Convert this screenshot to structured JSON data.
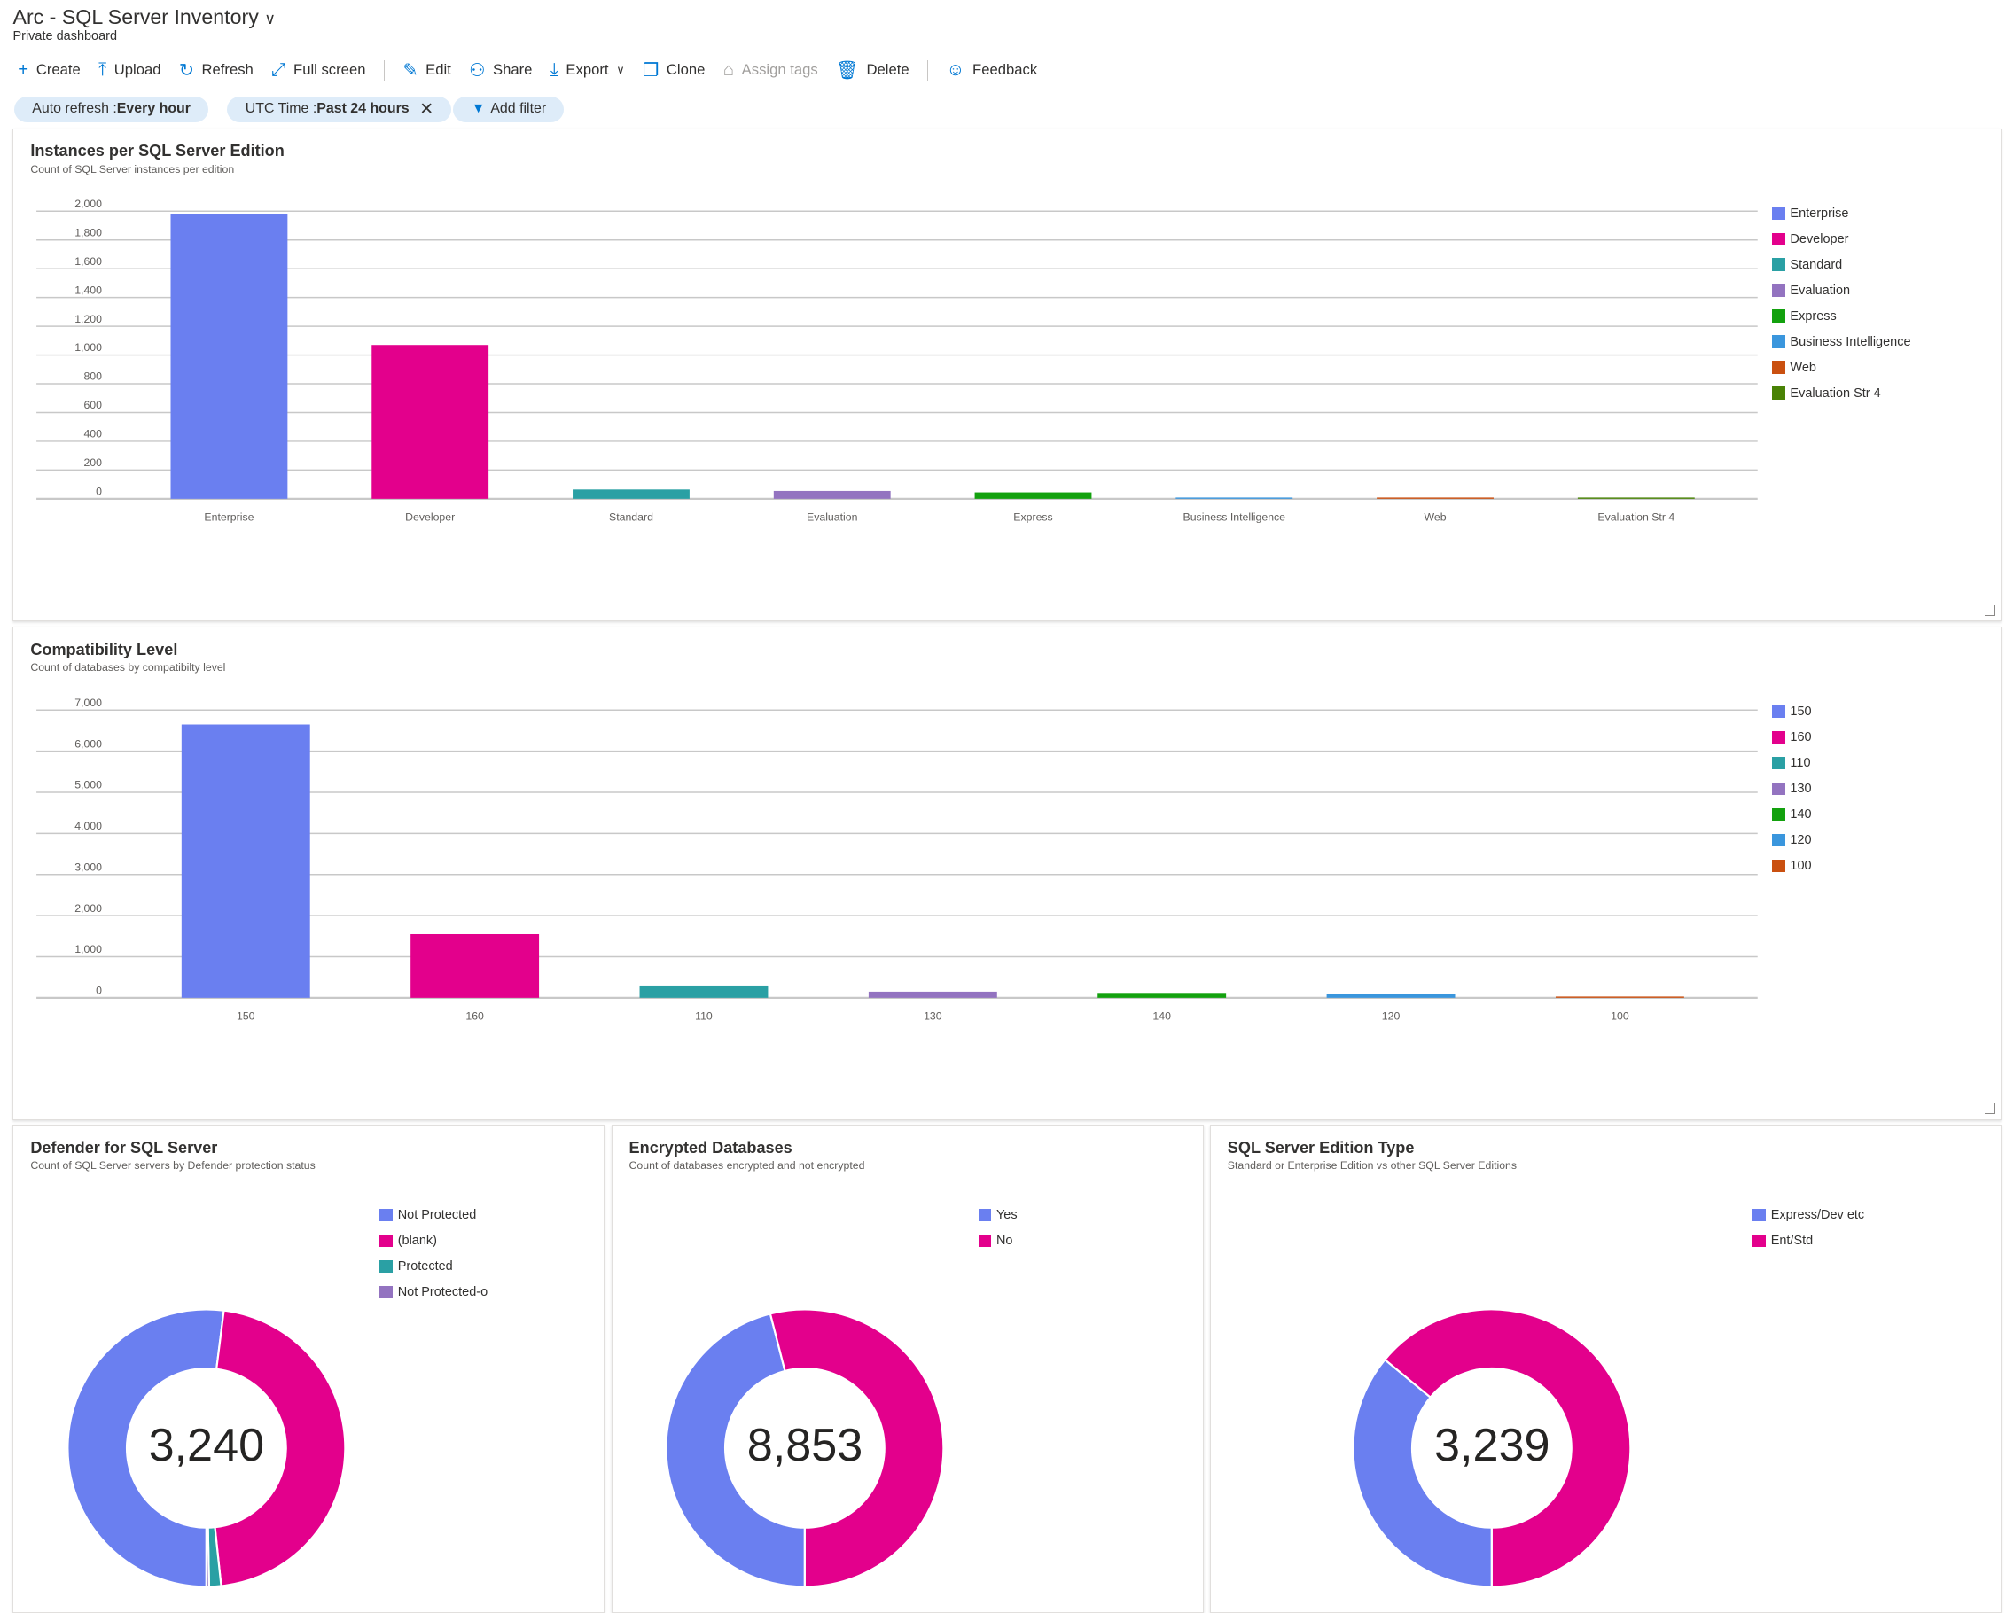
{
  "header": {
    "title": "Arc - SQL Server Inventory",
    "subtitle": "Private dashboard"
  },
  "toolbar": [
    {
      "label": "Create",
      "icon": "plus-icon",
      "glyph": "+"
    },
    {
      "label": "Upload",
      "icon": "upload-icon",
      "glyph": "⤒"
    },
    {
      "label": "Refresh",
      "icon": "refresh-icon",
      "glyph": "↻"
    },
    {
      "label": "Full screen",
      "icon": "fullscreen-icon",
      "glyph": "⤢"
    },
    {
      "label": "Edit",
      "icon": "pencil-icon",
      "glyph": "✎"
    },
    {
      "label": "Share",
      "icon": "share-icon",
      "glyph": "⚇"
    },
    {
      "label": "Export",
      "icon": "download-icon",
      "glyph": "⤓"
    },
    {
      "label": "Clone",
      "icon": "clone-icon",
      "glyph": "❐"
    },
    {
      "label": "Assign tags",
      "icon": "tag-icon",
      "glyph": "⌂"
    },
    {
      "label": "Delete",
      "icon": "trash-icon",
      "glyph": "🗑"
    },
    {
      "label": "Feedback",
      "icon": "feedback-icon",
      "glyph": "☺"
    }
  ],
  "filters": {
    "auto_refresh_label": "Auto refresh : ",
    "auto_refresh_value": "Every hour",
    "time_label": "UTC Time : ",
    "time_value": "Past 24 hours",
    "add_filter": "Add filter"
  },
  "chart_data": [
    {
      "type": "bar",
      "title": "Instances per SQL Server Edition",
      "subtitle": "Count of SQL Server instances per edition",
      "ylim": [
        0,
        2000
      ],
      "yticks": [
        "0",
        "200",
        "400",
        "600",
        "800",
        "1,000",
        "1,200",
        "1,400",
        "1,600",
        "1,800",
        "2,000"
      ],
      "categories": [
        "Enterprise",
        "Developer",
        "Standard",
        "Evaluation",
        "Express",
        "Business Intelligence",
        "Web",
        "Evaluation Str 4"
      ],
      "values": [
        1980,
        1070,
        65,
        55,
        45,
        5,
        3,
        2
      ],
      "colors": [
        "#6a7ff0",
        "#e3008c",
        "#2aa0a4",
        "#9373c0",
        "#13a10e",
        "#3a96dd",
        "#ca5010",
        "#498205"
      ],
      "legend": "right",
      "grid": true
    },
    {
      "type": "bar",
      "title": "Compatibility Level",
      "subtitle": "Count of databases by compatibilty level",
      "ylim": [
        0,
        7000
      ],
      "yticks": [
        "0",
        "1,000",
        "2,000",
        "3,000",
        "4,000",
        "5,000",
        "6,000",
        "7,000"
      ],
      "categories": [
        "150",
        "160",
        "110",
        "130",
        "140",
        "120",
        "100"
      ],
      "values": [
        6650,
        1550,
        300,
        150,
        120,
        90,
        10
      ],
      "colors": [
        "#6a7ff0",
        "#e3008c",
        "#2aa0a4",
        "#9373c0",
        "#13a10e",
        "#3a96dd",
        "#ca5010"
      ],
      "legend": "right",
      "grid": true
    },
    {
      "type": "pie",
      "donut": true,
      "title": "Defender for SQL Server",
      "subtitle": "Count of SQL Server servers by Defender protection status",
      "total": "3,240",
      "categories": [
        "Not Protected",
        "(blank)",
        "Protected",
        "Not Protected-o"
      ],
      "values": [
        1685,
        1500,
        45,
        10
      ],
      "colors": [
        "#6a7ff0",
        "#e3008c",
        "#2aa0a4",
        "#9373c0"
      ]
    },
    {
      "type": "pie",
      "donut": true,
      "title": "Encrypted Databases",
      "subtitle": "Count of databases encrypted and not encrypted",
      "total": "8,853",
      "categories": [
        "Yes",
        "No"
      ],
      "values": [
        4072,
        4781
      ],
      "colors": [
        "#6a7ff0",
        "#e3008c"
      ]
    },
    {
      "type": "pie",
      "donut": true,
      "title": "SQL Server Edition Type",
      "subtitle": "Standard or Enterprise Edition vs other SQL Server Editions",
      "total": "3,239",
      "categories": [
        "Express/Dev etc",
        "Ent/Std"
      ],
      "values": [
        1166,
        2073
      ],
      "colors": [
        "#6a7ff0",
        "#e3008c"
      ]
    }
  ]
}
